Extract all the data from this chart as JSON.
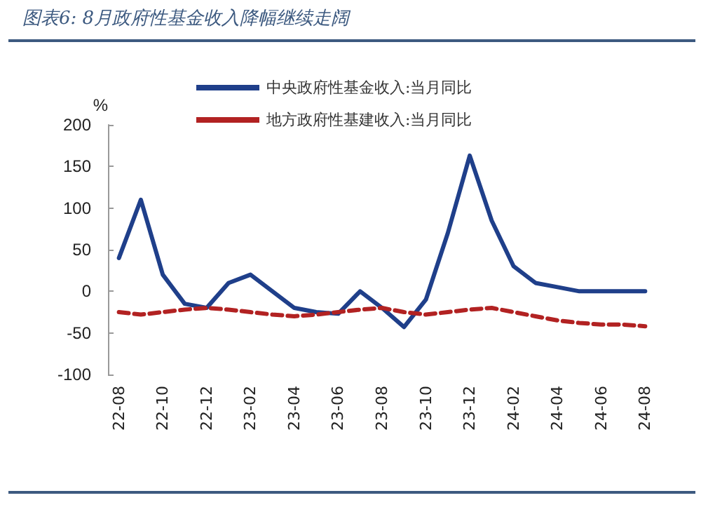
{
  "chart_data": {
    "type": "line",
    "title": "图表6: 8月政府性基金收入降幅继续走阔",
    "ylabel": "%",
    "categories": [
      "22-08",
      null,
      "22-10",
      null,
      "22-12",
      null,
      "23-02",
      null,
      "23-04",
      null,
      "23-06",
      null,
      "23-08",
      null,
      "23-10",
      null,
      "23-12",
      null,
      "24-02",
      null,
      "24-04",
      null,
      "24-06",
      null,
      "24-08"
    ],
    "series": [
      {
        "name": "中央政府性基金收入:当月同比",
        "color": "#1f3f8a",
        "line_style": "solid",
        "values": [
          40,
          110,
          20,
          -15,
          -20,
          10,
          20,
          0,
          -20,
          -25,
          -27,
          0,
          -20,
          -43,
          -10,
          70,
          163,
          85,
          30,
          10,
          5,
          0,
          0,
          0,
          0
        ]
      },
      {
        "name": "地方政府性基建收入:当月同比",
        "color": "#b22222",
        "line_style": "dashed",
        "values": [
          -25,
          -28,
          -25,
          -22,
          -20,
          -22,
          -25,
          -28,
          -30,
          -28,
          -25,
          -22,
          -20,
          -25,
          -28,
          -25,
          -22,
          -20,
          -25,
          -30,
          -35,
          -38,
          -40,
          -40,
          -42
        ]
      }
    ],
    "ylim": [
      -100,
      200
    ],
    "yticks": [
      -100,
      -50,
      0,
      50,
      100,
      150,
      200
    ],
    "grid": false,
    "legend": "top",
    "marker": "none"
  }
}
